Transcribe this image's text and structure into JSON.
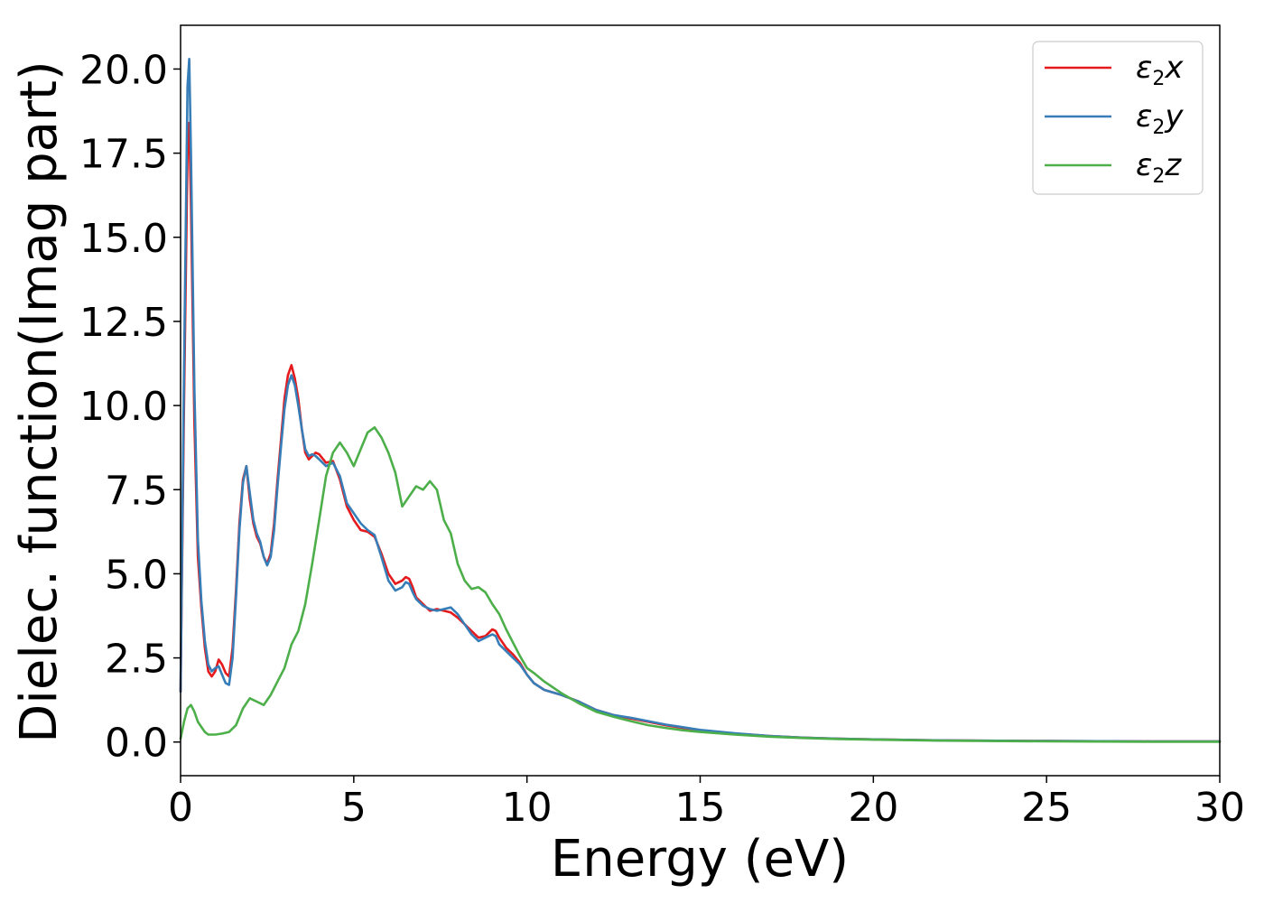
{
  "chart_data": {
    "type": "line",
    "title": "",
    "xlabel": "Energy (eV)",
    "ylabel": "Dielec. function(Imag part)",
    "xlim": [
      0,
      30
    ],
    "ylim": [
      -1,
      21.3
    ],
    "xticks": [
      0,
      5,
      10,
      15,
      20,
      25,
      30
    ],
    "xtick_labels": [
      "0",
      "5",
      "10",
      "15",
      "20",
      "25",
      "30"
    ],
    "yticks": [
      0,
      2.5,
      5,
      7.5,
      10,
      12.5,
      15,
      17.5,
      20
    ],
    "ytick_labels": [
      "0.0",
      "2.5",
      "5.0",
      "7.5",
      "10.0",
      "12.5",
      "15.0",
      "17.5",
      "20.0"
    ],
    "grid": false,
    "legend_position": "top-right",
    "series": [
      {
        "name": "ε2x",
        "legend_main": "ε",
        "legend_sub": "2",
        "legend_var": "x",
        "color": "#e41a1c",
        "x": [
          0,
          0.1,
          0.2,
          0.25,
          0.3,
          0.4,
          0.5,
          0.6,
          0.7,
          0.8,
          0.9,
          1.0,
          1.1,
          1.2,
          1.3,
          1.4,
          1.5,
          1.6,
          1.7,
          1.8,
          1.9,
          2.0,
          2.1,
          2.2,
          2.3,
          2.4,
          2.5,
          2.6,
          2.7,
          2.8,
          2.9,
          3.0,
          3.1,
          3.2,
          3.3,
          3.4,
          3.5,
          3.6,
          3.7,
          3.8,
          3.9,
          4.0,
          4.2,
          4.4,
          4.6,
          4.8,
          5.0,
          5.2,
          5.4,
          5.6,
          5.8,
          6.0,
          6.2,
          6.4,
          6.5,
          6.6,
          6.7,
          6.8,
          7.0,
          7.2,
          7.4,
          7.6,
          7.8,
          8.0,
          8.2,
          8.4,
          8.6,
          8.8,
          9.0,
          9.1,
          9.2,
          9.4,
          9.6,
          9.8,
          10.0,
          10.2,
          10.5,
          11.0,
          11.5,
          12.0,
          12.5,
          13.0,
          13.5,
          14.0,
          14.5,
          15.0,
          16.0,
          17.0,
          18.0,
          19.0,
          20.0,
          22.0,
          25.0,
          28.0,
          30.0
        ],
        "y": [
          1.5,
          10.0,
          17.5,
          18.4,
          16.0,
          9.5,
          5.5,
          4.0,
          2.8,
          2.1,
          1.95,
          2.1,
          2.45,
          2.3,
          2.05,
          1.95,
          2.8,
          4.5,
          6.5,
          7.8,
          8.2,
          7.2,
          6.5,
          6.1,
          5.9,
          5.5,
          5.3,
          5.6,
          6.5,
          7.8,
          9.0,
          10.2,
          10.9,
          11.2,
          10.8,
          10.2,
          9.3,
          8.6,
          8.4,
          8.5,
          8.6,
          8.55,
          8.3,
          8.35,
          7.8,
          7.0,
          6.6,
          6.3,
          6.25,
          6.1,
          5.6,
          5.0,
          4.7,
          4.8,
          4.9,
          4.85,
          4.6,
          4.3,
          4.1,
          3.9,
          3.95,
          3.9,
          3.85,
          3.7,
          3.5,
          3.3,
          3.1,
          3.15,
          3.35,
          3.3,
          3.1,
          2.8,
          2.6,
          2.35,
          2.0,
          1.75,
          1.55,
          1.4,
          1.2,
          0.95,
          0.8,
          0.7,
          0.6,
          0.5,
          0.42,
          0.35,
          0.25,
          0.18,
          0.13,
          0.1,
          0.08,
          0.05,
          0.03,
          0.02,
          0.02
        ]
      },
      {
        "name": "ε2y",
        "legend_main": "ε",
        "legend_sub": "2",
        "legend_var": "y",
        "color": "#377eb8",
        "x": [
          0,
          0.1,
          0.2,
          0.25,
          0.3,
          0.4,
          0.5,
          0.6,
          0.7,
          0.8,
          0.9,
          1.0,
          1.1,
          1.2,
          1.3,
          1.4,
          1.5,
          1.6,
          1.7,
          1.8,
          1.9,
          2.0,
          2.1,
          2.2,
          2.3,
          2.4,
          2.5,
          2.6,
          2.7,
          2.8,
          2.9,
          3.0,
          3.1,
          3.2,
          3.3,
          3.4,
          3.5,
          3.6,
          3.7,
          3.8,
          3.9,
          4.0,
          4.2,
          4.4,
          4.6,
          4.8,
          5.0,
          5.2,
          5.4,
          5.6,
          5.8,
          6.0,
          6.2,
          6.4,
          6.5,
          6.6,
          6.7,
          6.8,
          7.0,
          7.2,
          7.4,
          7.6,
          7.8,
          8.0,
          8.2,
          8.4,
          8.6,
          8.8,
          9.0,
          9.1,
          9.2,
          9.4,
          9.6,
          9.8,
          10.0,
          10.2,
          10.5,
          11.0,
          11.5,
          12.0,
          12.5,
          13.0,
          13.5,
          14.0,
          14.5,
          15.0,
          16.0,
          17.0,
          18.0,
          19.0,
          20.0,
          22.0,
          25.0,
          28.0,
          30.0
        ],
        "y": [
          1.5,
          11.0,
          19.5,
          20.3,
          17.5,
          10.5,
          6.0,
          4.2,
          3.0,
          2.3,
          2.1,
          2.2,
          2.25,
          2.0,
          1.75,
          1.7,
          2.5,
          4.3,
          6.3,
          7.7,
          8.2,
          7.4,
          6.6,
          6.2,
          5.95,
          5.5,
          5.25,
          5.5,
          6.3,
          7.6,
          8.8,
          9.9,
          10.6,
          10.9,
          10.6,
          10.0,
          9.3,
          8.7,
          8.5,
          8.55,
          8.5,
          8.4,
          8.2,
          8.3,
          7.9,
          7.1,
          6.8,
          6.5,
          6.3,
          6.15,
          5.5,
          4.8,
          4.5,
          4.6,
          4.75,
          4.7,
          4.45,
          4.25,
          4.05,
          3.95,
          3.9,
          3.95,
          4.0,
          3.8,
          3.5,
          3.2,
          3.0,
          3.1,
          3.2,
          3.15,
          2.9,
          2.7,
          2.5,
          2.3,
          2.0,
          1.75,
          1.55,
          1.4,
          1.2,
          0.95,
          0.8,
          0.72,
          0.62,
          0.52,
          0.44,
          0.36,
          0.26,
          0.18,
          0.13,
          0.1,
          0.08,
          0.05,
          0.03,
          0.02,
          0.02
        ]
      },
      {
        "name": "ε2z",
        "legend_main": "ε",
        "legend_sub": "2",
        "legend_var": "z",
        "color": "#4daf4a",
        "x": [
          0,
          0.1,
          0.2,
          0.3,
          0.4,
          0.5,
          0.6,
          0.7,
          0.8,
          1.0,
          1.2,
          1.4,
          1.6,
          1.8,
          2.0,
          2.2,
          2.4,
          2.6,
          2.8,
          3.0,
          3.2,
          3.4,
          3.6,
          3.8,
          4.0,
          4.2,
          4.4,
          4.6,
          4.8,
          5.0,
          5.2,
          5.4,
          5.6,
          5.8,
          6.0,
          6.2,
          6.4,
          6.6,
          6.8,
          7.0,
          7.2,
          7.4,
          7.6,
          7.8,
          8.0,
          8.2,
          8.4,
          8.6,
          8.8,
          9.0,
          9.2,
          9.4,
          9.6,
          9.8,
          10.0,
          10.2,
          10.5,
          11.0,
          11.5,
          12.0,
          12.5,
          13.0,
          13.5,
          14.0,
          14.5,
          15.0,
          16.0,
          17.0,
          18.0,
          19.0,
          20.0,
          22.0,
          25.0,
          28.0,
          30.0
        ],
        "y": [
          0.1,
          0.6,
          1.0,
          1.1,
          0.9,
          0.6,
          0.45,
          0.3,
          0.22,
          0.22,
          0.25,
          0.3,
          0.5,
          1.0,
          1.3,
          1.2,
          1.1,
          1.4,
          1.8,
          2.2,
          2.9,
          3.3,
          4.1,
          5.3,
          6.6,
          7.9,
          8.6,
          8.9,
          8.6,
          8.2,
          8.7,
          9.2,
          9.35,
          9.05,
          8.6,
          8.0,
          7.0,
          7.3,
          7.6,
          7.5,
          7.75,
          7.5,
          6.6,
          6.2,
          5.3,
          4.8,
          4.55,
          4.6,
          4.45,
          4.1,
          3.8,
          3.35,
          2.95,
          2.55,
          2.2,
          2.05,
          1.8,
          1.45,
          1.15,
          0.9,
          0.75,
          0.62,
          0.5,
          0.42,
          0.35,
          0.3,
          0.22,
          0.16,
          0.12,
          0.09,
          0.07,
          0.04,
          0.02,
          0.01,
          0.01
        ]
      }
    ]
  }
}
